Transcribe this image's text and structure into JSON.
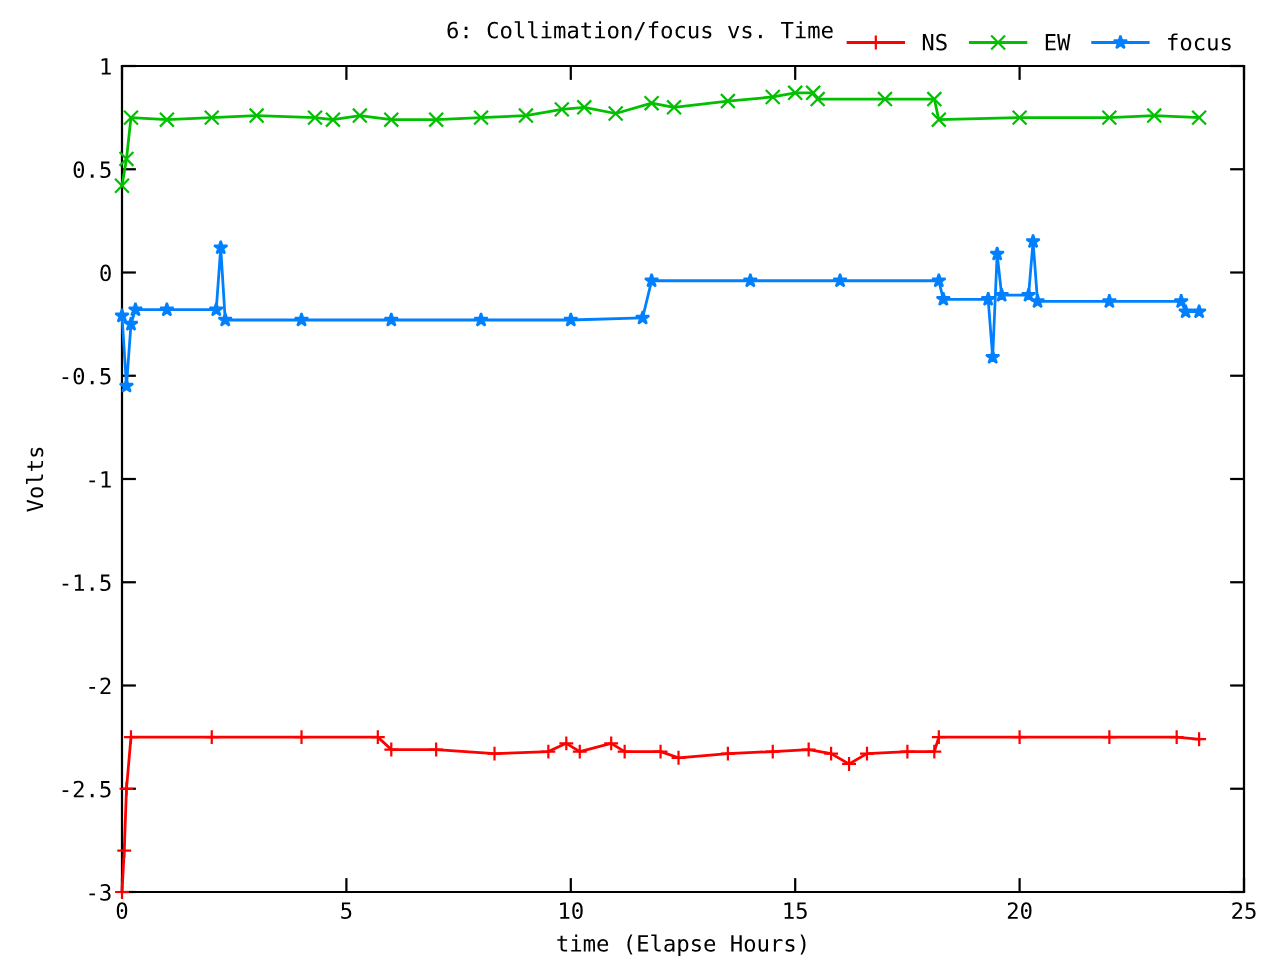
{
  "chart_data": {
    "type": "line",
    "title": "6: Collimation/focus vs. Time",
    "xlabel": "time (Elapse Hours)",
    "ylabel": "Volts",
    "xlim": [
      0,
      25
    ],
    "xticks": [
      0,
      5,
      10,
      15,
      20,
      25
    ],
    "ylim": [
      -3,
      1
    ],
    "yticks": [
      -3,
      -2.5,
      -2,
      -1.5,
      -1,
      -0.5,
      0,
      0.5,
      1
    ],
    "grid": false,
    "legend": "top right",
    "line_style": "solid",
    "series": [
      {
        "name": "NS",
        "color": "#ff0000",
        "marker": "plus",
        "x": [
          0,
          0.05,
          0.1,
          0.2,
          2,
          4,
          5.7,
          6.0,
          7,
          8.3,
          9.5,
          9.9,
          10.2,
          10.9,
          11.2,
          12,
          12.4,
          13.5,
          14.5,
          15.3,
          15.8,
          16.2,
          16.6,
          17.5,
          18.1,
          18.2,
          20,
          22,
          23.5,
          24
        ],
        "values": [
          -3.0,
          -2.8,
          -2.5,
          -2.25,
          -2.25,
          -2.25,
          -2.25,
          -2.31,
          -2.31,
          -2.33,
          -2.32,
          -2.28,
          -2.32,
          -2.28,
          -2.32,
          -2.32,
          -2.35,
          -2.33,
          -2.32,
          -2.31,
          -2.33,
          -2.38,
          -2.33,
          -2.32,
          -2.32,
          -2.25,
          -2.25,
          -2.25,
          -2.25,
          -2.26
        ]
      },
      {
        "name": "EW",
        "color": "#00c000",
        "marker": "cross",
        "x": [
          0,
          0.1,
          0.2,
          1,
          2,
          3,
          4.3,
          4.7,
          5.3,
          6,
          7,
          8,
          9,
          9.8,
          10.3,
          11.0,
          11.8,
          12.3,
          13.5,
          14.5,
          15,
          15.4,
          15.5,
          17,
          18.1,
          18.2,
          20,
          22,
          23,
          24
        ],
        "values": [
          0.42,
          0.55,
          0.75,
          0.74,
          0.75,
          0.76,
          0.75,
          0.74,
          0.76,
          0.74,
          0.74,
          0.75,
          0.76,
          0.79,
          0.8,
          0.77,
          0.82,
          0.8,
          0.83,
          0.85,
          0.87,
          0.87,
          0.84,
          0.84,
          0.84,
          0.74,
          0.75,
          0.75,
          0.76,
          0.75
        ]
      },
      {
        "name": "focus",
        "color": "#0080ff",
        "marker": "star",
        "x": [
          0,
          0.1,
          0.2,
          0.3,
          1,
          2.1,
          2.2,
          2.3,
          4,
          6,
          8,
          10,
          11.6,
          11.8,
          14,
          16,
          18.2,
          18.3,
          19.3,
          19.4,
          19.5,
          19.6,
          20.2,
          20.3,
          20.4,
          22,
          23.6,
          23.7,
          24
        ],
        "values": [
          -0.21,
          -0.55,
          -0.25,
          -0.18,
          -0.18,
          -0.18,
          0.12,
          -0.23,
          -0.23,
          -0.23,
          -0.23,
          -0.23,
          -0.22,
          -0.04,
          -0.04,
          -0.04,
          -0.04,
          -0.13,
          -0.13,
          -0.41,
          0.09,
          -0.11,
          -0.11,
          0.15,
          -0.14,
          -0.14,
          -0.14,
          -0.19,
          -0.19
        ]
      }
    ]
  }
}
